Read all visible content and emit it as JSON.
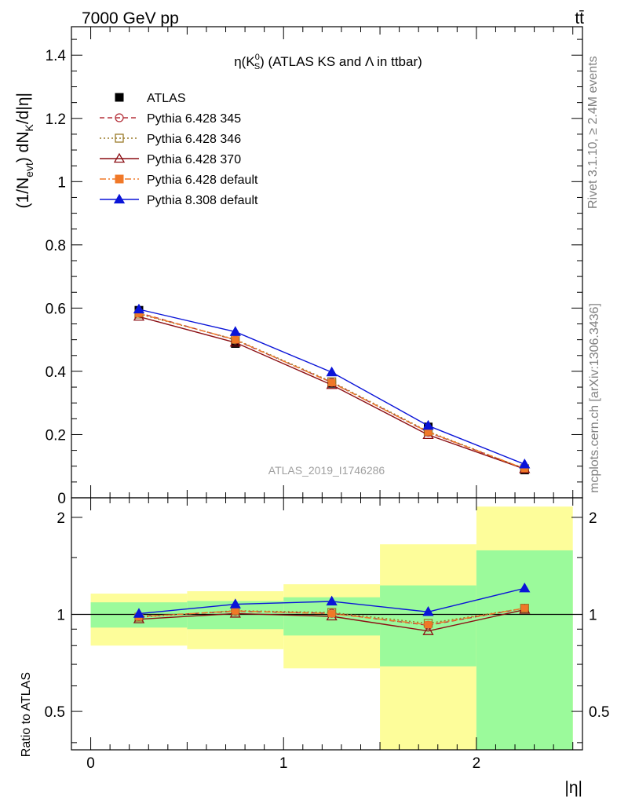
{
  "header": {
    "left": "7000 GeV pp",
    "right": "tt̄"
  },
  "side_labels": {
    "rivet": "Rivet 3.1.10, ≥ 2.4M events",
    "mcplots": "mcplots.cern.ch [arXiv:1306.3436]"
  },
  "watermark": "ATLAS_2019_I1746286",
  "chart_data": [
    {
      "type": "line",
      "title": "η(K⁰ₛ) (ATLAS KS and Λ in ttbar)",
      "title_parts": {
        "pre": "η(K",
        "sup": "0",
        "sub": "S",
        "post": ") (ATLAS KS and Λ in ttbar)"
      },
      "ylabel": "(1/N_evt) dN_K/d|η|",
      "ylabel_parts": {
        "a": "(1/N",
        "sub1": "evt",
        "b": ") dN",
        "sub2": "K",
        "c": "/d|η|"
      },
      "xlim": [
        -0.1,
        2.55
      ],
      "ylim": [
        0,
        1.49
      ],
      "y_ticks": [
        0,
        0.2,
        0.4,
        0.6,
        0.8,
        1,
        1.2,
        1.4
      ],
      "y_tick_labels": [
        "0",
        "0.2",
        "0.4",
        "0.6",
        "0.8",
        "1",
        "1.2",
        "1.4"
      ],
      "grid": false,
      "legend_position": "top-left",
      "x": [
        0.25,
        0.75,
        1.25,
        1.75,
        2.25
      ],
      "series": [
        {
          "name": "ATLAS",
          "values": [
            0.593,
            0.488,
            0.362,
            0.224,
            0.088
          ],
          "color": "#000000",
          "marker": "square-filled",
          "line": "none"
        },
        {
          "name": "Pythia 6.428 345",
          "values": [
            0.585,
            0.499,
            0.365,
            0.207,
            0.092
          ],
          "color": "#b5323b",
          "marker": "circle-open",
          "line": "dashed"
        },
        {
          "name": "Pythia 6.428 346",
          "values": [
            0.581,
            0.501,
            0.367,
            0.21,
            0.092
          ],
          "color": "#9a7b2a",
          "marker": "square-open",
          "line": "dotted"
        },
        {
          "name": "Pythia 6.428 370",
          "values": [
            0.573,
            0.491,
            0.357,
            0.199,
            0.091
          ],
          "color": "#8b0f14",
          "marker": "triangle-open",
          "line": "solid"
        },
        {
          "name": "Pythia 6.428 default",
          "values": [
            0.583,
            0.5,
            0.364,
            0.208,
            0.092
          ],
          "color": "#f07828",
          "marker": "square-filled",
          "line": "dashdot"
        },
        {
          "name": "Pythia 8.308 default",
          "values": [
            0.596,
            0.525,
            0.397,
            0.228,
            0.106
          ],
          "color": "#0a14d8",
          "marker": "triangle-filled",
          "line": "solid"
        }
      ]
    },
    {
      "type": "line",
      "ylabel": "Ratio to ATLAS",
      "xlabel": "|η|",
      "xlim": [
        -0.1,
        2.55
      ],
      "ylim": [
        0.38,
        2.3
      ],
      "x_ticks": [
        0,
        1,
        2
      ],
      "x_tick_labels": [
        "0",
        "1",
        "2"
      ],
      "y_ticks": [
        0.5,
        1,
        2
      ],
      "y_tick_labels": [
        "0.5",
        "1",
        "2"
      ],
      "reference_line": 1,
      "bands": [
        {
          "x": [
            0,
            0.5
          ],
          "stat": [
            0.91,
            1.09
          ],
          "total": [
            0.8,
            1.16
          ]
        },
        {
          "x": [
            0.5,
            1
          ],
          "stat": [
            0.9,
            1.1
          ],
          "total": [
            0.78,
            1.18
          ]
        },
        {
          "x": [
            1,
            1.5
          ],
          "stat": [
            0.86,
            1.13
          ],
          "total": [
            0.68,
            1.24
          ]
        },
        {
          "x": [
            1.5,
            2
          ],
          "stat": [
            0.69,
            1.23
          ],
          "total": [
            0.38,
            1.65
          ]
        },
        {
          "x": [
            2,
            2.5
          ],
          "stat": [
            0.38,
            1.58
          ],
          "total": [
            0.38,
            2.16
          ]
        }
      ],
      "band_colors": {
        "stat": "#9bfa9b",
        "total": "#fdfd9a"
      },
      "x": [
        0.25,
        0.75,
        1.25,
        1.75,
        2.25
      ],
      "series": [
        {
          "name": "Pythia 6.428 345",
          "values": [
            0.986,
            1.022,
            1.008,
            0.925,
            1.045
          ]
        },
        {
          "name": "Pythia 6.428 346",
          "values": [
            0.98,
            1.027,
            1.014,
            0.938,
            1.045
          ]
        },
        {
          "name": "Pythia 6.428 370",
          "values": [
            0.966,
            1.006,
            0.986,
            0.888,
            1.034
          ]
        },
        {
          "name": "Pythia 6.428 default",
          "values": [
            0.983,
            1.025,
            1.005,
            0.929,
            1.045
          ]
        },
        {
          "name": "Pythia 8.308 default",
          "values": [
            1.005,
            1.075,
            1.097,
            1.018,
            1.205
          ]
        }
      ]
    }
  ]
}
